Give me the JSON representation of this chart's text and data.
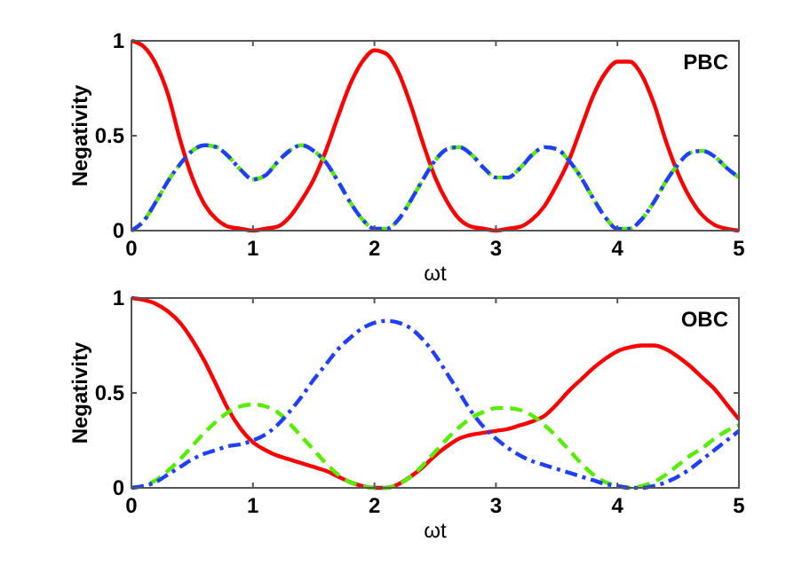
{
  "chart_data": [
    {
      "type": "line",
      "xlabel": "ωt",
      "ylabel": "Negativity",
      "annotations": [
        "PBC"
      ],
      "xlim": [
        0,
        5
      ],
      "ylim": [
        0,
        1
      ],
      "xticks": [
        0,
        1,
        2,
        3,
        4,
        5
      ],
      "yticks": [
        0,
        0.5,
        1
      ],
      "grid": false,
      "x": [
        0,
        0.1,
        0.2,
        0.3,
        0.4,
        0.5,
        0.6,
        0.7,
        0.8,
        0.9,
        1,
        1.1,
        1.2,
        1.3,
        1.4,
        1.5,
        1.6,
        1.7,
        1.8,
        1.9,
        2,
        2.1,
        2.2,
        2.3,
        2.4,
        2.5,
        2.6,
        2.7,
        2.8,
        2.9,
        3,
        3.1,
        3.2,
        3.3,
        3.4,
        3.5,
        3.6,
        3.7,
        3.8,
        3.9,
        4,
        4.1,
        4.2,
        4.3,
        4.4,
        4.5,
        4.6,
        4.7,
        4.8,
        4.9,
        5
      ],
      "series": [
        {
          "color": "#ff0000",
          "line_style": "solid",
          "values": [
            1,
            0.97,
            0.88,
            0.72,
            0.48,
            0.28,
            0.14,
            0.06,
            0.02,
            0.01,
            0,
            0.01,
            0.02,
            0.07,
            0.16,
            0.27,
            0.42,
            0.6,
            0.77,
            0.89,
            0.95,
            0.93,
            0.83,
            0.66,
            0.46,
            0.28,
            0.15,
            0.06,
            0.02,
            0.01,
            0,
            0.01,
            0.02,
            0.06,
            0.13,
            0.24,
            0.37,
            0.54,
            0.71,
            0.83,
            0.89,
            0.89,
            0.82,
            0.67,
            0.47,
            0.3,
            0.17,
            0.08,
            0.03,
            0.01,
            0
          ]
        },
        {
          "color": "#55ee00",
          "line_style": "dashed",
          "values": [
            0,
            0.05,
            0.15,
            0.26,
            0.35,
            0.42,
            0.45,
            0.44,
            0.39,
            0.32,
            0.27,
            0.29,
            0.36,
            0.42,
            0.45,
            0.42,
            0.36,
            0.26,
            0.15,
            0.06,
            0.01,
            0.01,
            0.06,
            0.16,
            0.27,
            0.37,
            0.43,
            0.44,
            0.4,
            0.33,
            0.28,
            0.28,
            0.33,
            0.4,
            0.44,
            0.43,
            0.37,
            0.28,
            0.17,
            0.07,
            0.01,
            0.01,
            0.06,
            0.15,
            0.26,
            0.35,
            0.41,
            0.42,
            0.39,
            0.33,
            0.28
          ]
        },
        {
          "color": "#1f3fff",
          "line_style": "dashdot",
          "values": [
            0,
            0.05,
            0.15,
            0.26,
            0.35,
            0.42,
            0.45,
            0.44,
            0.39,
            0.32,
            0.27,
            0.29,
            0.36,
            0.42,
            0.45,
            0.42,
            0.36,
            0.26,
            0.15,
            0.06,
            0.01,
            0.01,
            0.06,
            0.16,
            0.27,
            0.37,
            0.43,
            0.44,
            0.4,
            0.33,
            0.28,
            0.28,
            0.33,
            0.4,
            0.44,
            0.43,
            0.37,
            0.28,
            0.17,
            0.07,
            0.01,
            0.01,
            0.06,
            0.15,
            0.26,
            0.35,
            0.41,
            0.42,
            0.39,
            0.33,
            0.28
          ]
        }
      ]
    },
    {
      "type": "line",
      "xlabel": "ωt",
      "ylabel": "Negativity",
      "annotations": [
        "OBC"
      ],
      "xlim": [
        0,
        5
      ],
      "ylim": [
        0,
        1
      ],
      "xticks": [
        0,
        1,
        2,
        3,
        4,
        5
      ],
      "yticks": [
        0,
        0.5,
        1
      ],
      "grid": false,
      "x": [
        0,
        0.1,
        0.2,
        0.3,
        0.4,
        0.5,
        0.6,
        0.7,
        0.8,
        0.9,
        1,
        1.1,
        1.2,
        1.3,
        1.4,
        1.5,
        1.6,
        1.7,
        1.8,
        1.9,
        2,
        2.1,
        2.2,
        2.3,
        2.4,
        2.5,
        2.6,
        2.7,
        2.8,
        2.9,
        3,
        3.1,
        3.2,
        3.3,
        3.4,
        3.5,
        3.6,
        3.7,
        3.8,
        3.9,
        4,
        4.1,
        4.2,
        4.3,
        4.4,
        4.5,
        4.6,
        4.7,
        4.8,
        4.9,
        5
      ],
      "series": [
        {
          "color": "#ff0000",
          "line_style": "solid",
          "values": [
            1,
            0.99,
            0.97,
            0.93,
            0.87,
            0.78,
            0.67,
            0.54,
            0.41,
            0.31,
            0.24,
            0.2,
            0.17,
            0.15,
            0.13,
            0.11,
            0.09,
            0.06,
            0.03,
            0.01,
            0,
            0,
            0.02,
            0.06,
            0.11,
            0.17,
            0.22,
            0.26,
            0.28,
            0.29,
            0.3,
            0.31,
            0.33,
            0.35,
            0.38,
            0.44,
            0.51,
            0.57,
            0.63,
            0.68,
            0.72,
            0.74,
            0.75,
            0.75,
            0.73,
            0.69,
            0.64,
            0.58,
            0.52,
            0.44,
            0.36
          ]
        },
        {
          "color": "#55ee00",
          "line_style": "dashed",
          "values": [
            0,
            0.01,
            0.04,
            0.09,
            0.15,
            0.22,
            0.29,
            0.35,
            0.4,
            0.43,
            0.44,
            0.43,
            0.4,
            0.34,
            0.27,
            0.2,
            0.13,
            0.07,
            0.03,
            0.01,
            0,
            0,
            0.02,
            0.06,
            0.12,
            0.19,
            0.26,
            0.32,
            0.37,
            0.4,
            0.42,
            0.42,
            0.41,
            0.38,
            0.33,
            0.27,
            0.2,
            0.13,
            0.07,
            0.03,
            0.01,
            0,
            0.01,
            0.03,
            0.07,
            0.12,
            0.17,
            0.21,
            0.26,
            0.3,
            0.33
          ]
        },
        {
          "color": "#1f3fff",
          "line_style": "dashdot",
          "values": [
            0,
            0.01,
            0.03,
            0.07,
            0.11,
            0.15,
            0.18,
            0.2,
            0.22,
            0.23,
            0.25,
            0.28,
            0.33,
            0.4,
            0.48,
            0.57,
            0.65,
            0.73,
            0.79,
            0.84,
            0.87,
            0.88,
            0.87,
            0.84,
            0.78,
            0.7,
            0.6,
            0.5,
            0.4,
            0.32,
            0.26,
            0.21,
            0.17,
            0.14,
            0.12,
            0.1,
            0.08,
            0.06,
            0.04,
            0.02,
            0.01,
            0,
            0,
            0.01,
            0.03,
            0.06,
            0.1,
            0.15,
            0.2,
            0.25,
            0.3
          ]
        }
      ]
    }
  ]
}
